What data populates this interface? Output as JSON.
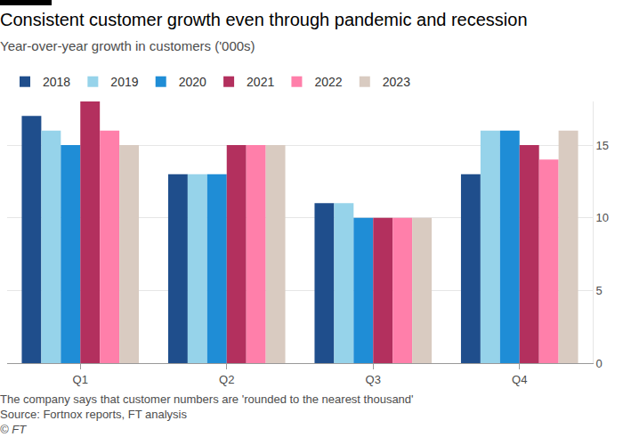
{
  "chart_data": {
    "type": "bar",
    "title": "Consistent customer growth even through pandemic and recession",
    "subtitle": "Year-over-year growth in customers ('000s)",
    "annotations": [
      "The company says that customer numbers are 'rounded to the nearest thousand'",
      "Source: Fortnox reports, FT analysis",
      "© FT"
    ],
    "categories": [
      "Q1",
      "Q2",
      "Q3",
      "Q4"
    ],
    "series": [
      {
        "name": "2018",
        "color": "#1f4e8c",
        "values": [
          17,
          13,
          11,
          13
        ]
      },
      {
        "name": "2019",
        "color": "#96d3ea",
        "values": [
          16,
          13,
          11,
          16
        ]
      },
      {
        "name": "2020",
        "color": "#1f8dd6",
        "values": [
          15,
          13,
          10,
          16
        ]
      },
      {
        "name": "2021",
        "color": "#b3305e",
        "values": [
          18,
          15,
          10,
          15
        ]
      },
      {
        "name": "2022",
        "color": "#ff7faa",
        "values": [
          16,
          15,
          10,
          14
        ]
      },
      {
        "name": "2023",
        "color": "#d9cbc1",
        "values": [
          15,
          15,
          10,
          16
        ]
      }
    ],
    "ylim": [
      0,
      18
    ],
    "yticks": [
      0,
      5,
      10,
      15
    ],
    "grid": true,
    "legend": "top"
  }
}
